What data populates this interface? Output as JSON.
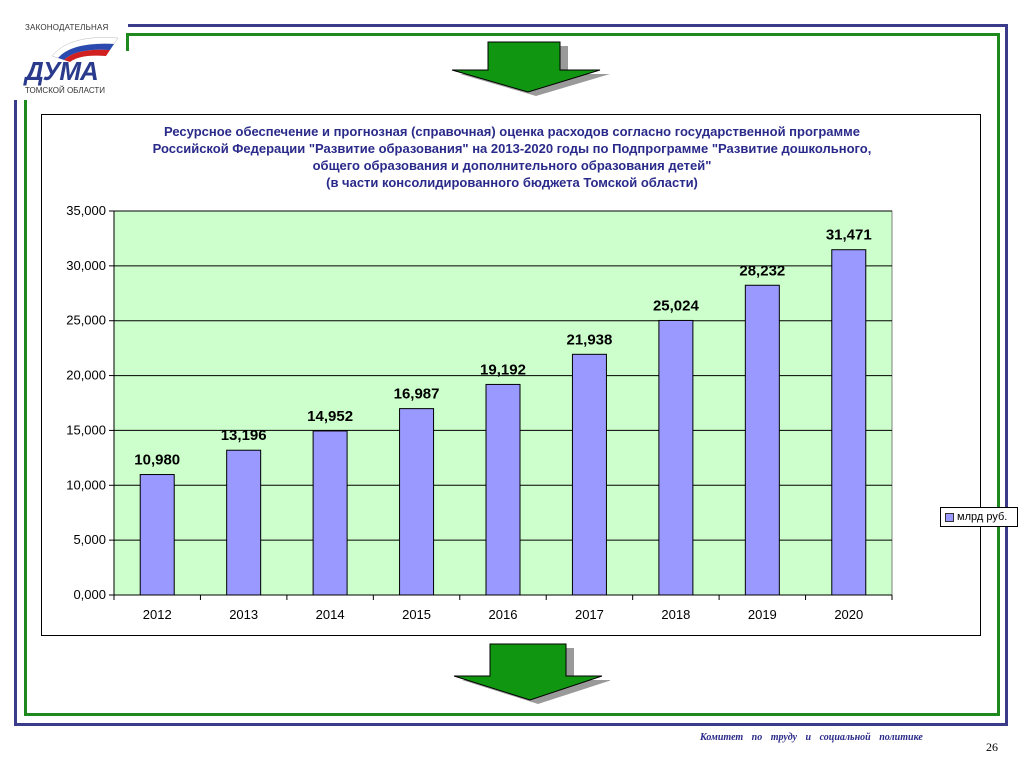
{
  "logo": {
    "top_text": "ЗАКОНОДАТЕЛЬНАЯ",
    "word": "ДУМА",
    "bottom_text": "ТОМСКОЙ ОБЛАСТИ"
  },
  "chart_data": {
    "type": "bar",
    "title_lines": [
      "Ресурсное обеспечение и прогнозная (справочная) оценка расходов согласно государственной программе",
      "Российской Федерации \"Развитие образования\" на 2013-2020 годы по Подпрограмме \"Развитие дошкольного,",
      "общего образования и дополнительного образования детей\"",
      "(в части консолидированного бюджета Томской области)"
    ],
    "categories": [
      "2012",
      "2013",
      "2014",
      "2015",
      "2016",
      "2017",
      "2018",
      "2019",
      "2020"
    ],
    "series": [
      {
        "name": "млрд руб.",
        "values": [
          10.98,
          13.196,
          14.952,
          16.987,
          19.192,
          21.938,
          25.024,
          28.232,
          31.471
        ],
        "labels": [
          "10,980",
          "13,196",
          "14,952",
          "16,987",
          "19,192",
          "21,938",
          "25,024",
          "28,232",
          "31,471"
        ]
      }
    ],
    "ylim": [
      0,
      35
    ],
    "yticks": [
      0,
      5,
      10,
      15,
      20,
      25,
      30,
      35
    ],
    "ytick_labels": [
      "0,000",
      "5,000",
      "10,000",
      "15,000",
      "20,000",
      "25,000",
      "30,000",
      "35,000"
    ],
    "grid": true,
    "legend_position": "right",
    "colors": {
      "bar": "#9999ff",
      "plot_bg": "#ccffcc",
      "title": "#2a2a8a",
      "arrow": "#119611"
    }
  },
  "footer": {
    "committee": "Комитет по труду и социальной политике",
    "page_number": "26"
  }
}
